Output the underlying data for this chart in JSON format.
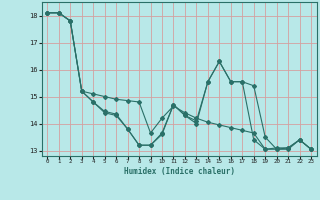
{
  "xlabel": "Humidex (Indice chaleur)",
  "background_color": "#b8e8e8",
  "grid_color": "#d4a0a0",
  "line_color": "#2a7068",
  "xlim": [
    -0.5,
    23.5
  ],
  "ylim": [
    12.8,
    18.5
  ],
  "yticks": [
    13,
    14,
    15,
    16,
    17,
    18
  ],
  "xticks": [
    0,
    1,
    2,
    3,
    4,
    5,
    6,
    7,
    8,
    9,
    10,
    11,
    12,
    13,
    14,
    15,
    16,
    17,
    18,
    19,
    20,
    21,
    22,
    23
  ],
  "line1_x": [
    0,
    1,
    2,
    3,
    4,
    5,
    6,
    7,
    8,
    9,
    10,
    11,
    12,
    13,
    14,
    15,
    16,
    17,
    18,
    19,
    20,
    21,
    22,
    23
  ],
  "line1_y": [
    18.1,
    18.1,
    17.8,
    15.2,
    14.8,
    14.4,
    14.3,
    13.8,
    13.2,
    13.2,
    13.65,
    14.7,
    14.3,
    14.1,
    15.55,
    16.3,
    15.55,
    15.55,
    15.4,
    13.5,
    13.05,
    13.1,
    13.4,
    13.05
  ],
  "line2_x": [
    0,
    1,
    2,
    3,
    4,
    5,
    6,
    7,
    8,
    9,
    10,
    11,
    12,
    13,
    14,
    15,
    16,
    17,
    18,
    19,
    20,
    21,
    22,
    23
  ],
  "line2_y": [
    18.1,
    18.1,
    17.8,
    15.2,
    15.1,
    15.0,
    14.9,
    14.85,
    14.8,
    13.65,
    14.2,
    14.65,
    14.4,
    14.2,
    14.05,
    13.95,
    13.85,
    13.75,
    13.65,
    13.05,
    13.05,
    13.05,
    13.4,
    13.05
  ],
  "line3_x": [
    0,
    1,
    2,
    3,
    4,
    5,
    6,
    7,
    8,
    9,
    10,
    11,
    12,
    13,
    14,
    15,
    16,
    17,
    18,
    19,
    20,
    21,
    22,
    23
  ],
  "line3_y": [
    18.1,
    18.1,
    17.8,
    15.2,
    14.8,
    14.45,
    14.35,
    13.8,
    13.2,
    13.2,
    13.6,
    14.7,
    14.3,
    14.0,
    15.55,
    16.3,
    15.55,
    15.55,
    13.4,
    13.05,
    13.1,
    13.1,
    13.4,
    13.05
  ]
}
